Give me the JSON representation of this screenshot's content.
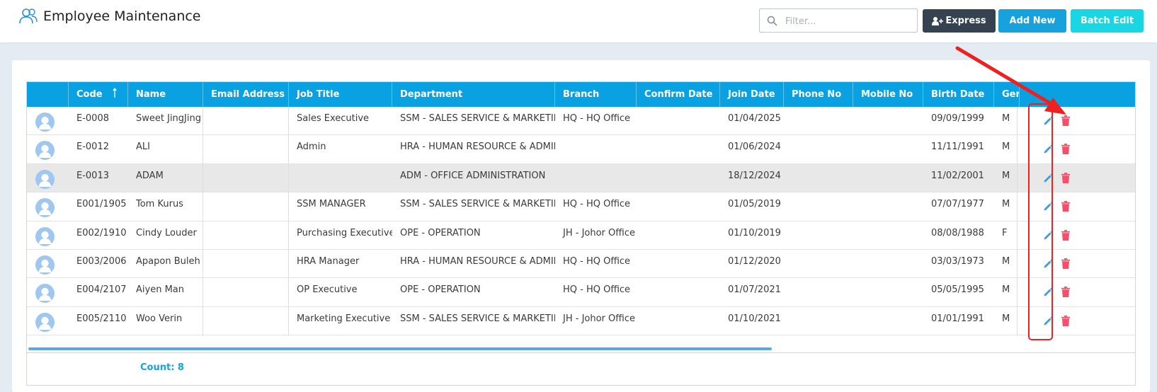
{
  "header": {
    "title": "Employee Maintenance",
    "filter_placeholder": "Filter...",
    "buttons": {
      "express": "Express",
      "add_new": "Add New",
      "batch_edit": "Batch Edit"
    }
  },
  "grid": {
    "columns": [
      "",
      "Code",
      "Name",
      "Email Address",
      "Job Title",
      "Department",
      "Branch",
      "Confirm Date",
      "Join Date",
      "Phone No",
      "Mobile No",
      "Birth Date",
      "Ger"
    ],
    "rows": [
      {
        "code": "E-0008",
        "name": "Sweet JingJing",
        "email": "",
        "job_title": "Sales Executive",
        "department": "SSM - SALES SERVICE & MARKETING",
        "branch": "HQ - HQ Office",
        "confirm_date": "",
        "join_date": "01/04/2025",
        "phone": "",
        "mobile": "",
        "birth_date": "09/09/1999",
        "gender": "M"
      },
      {
        "code": "E-0012",
        "name": "ALI",
        "email": "",
        "job_title": "Admin",
        "department": "HRA - HUMAN RESOURCE & ADMIN",
        "branch": "",
        "confirm_date": "",
        "join_date": "01/06/2024",
        "phone": "",
        "mobile": "",
        "birth_date": "11/11/1991",
        "gender": "M"
      },
      {
        "code": "E-0013",
        "name": "ADAM",
        "email": "",
        "job_title": "",
        "department": "ADM - OFFICE ADMINISTRATION",
        "branch": "",
        "confirm_date": "",
        "join_date": "18/12/2024",
        "phone": "",
        "mobile": "",
        "birth_date": "11/02/2001",
        "gender": "M"
      },
      {
        "code": "E001/1905",
        "name": "Tom Kurus",
        "email": "",
        "job_title": "SSM MANAGER",
        "department": "SSM - SALES SERVICE & MARKETING",
        "branch": "HQ - HQ Office",
        "confirm_date": "",
        "join_date": "01/05/2019",
        "phone": "",
        "mobile": "",
        "birth_date": "07/07/1977",
        "gender": "M"
      },
      {
        "code": "E002/1910",
        "name": "Cindy Louder",
        "email": "",
        "job_title": "Purchasing Executive",
        "department": "OPE - OPERATION",
        "branch": "JH - Johor Office",
        "confirm_date": "",
        "join_date": "01/10/2019",
        "phone": "",
        "mobile": "",
        "birth_date": "08/08/1988",
        "gender": "F"
      },
      {
        "code": "E003/2006",
        "name": "Apapon Buleh",
        "email": "",
        "job_title": "HRA Manager",
        "department": "HRA - HUMAN RESOURCE & ADMIN",
        "branch": "HQ - HQ Office",
        "confirm_date": "",
        "join_date": "01/12/2020",
        "phone": "",
        "mobile": "",
        "birth_date": "03/03/1973",
        "gender": "M"
      },
      {
        "code": "E004/2107",
        "name": "Aiyen Man",
        "email": "",
        "job_title": "OP Executive",
        "department": "OPE - OPERATION",
        "branch": "HQ - HQ Office",
        "confirm_date": "",
        "join_date": "01/07/2021",
        "phone": "",
        "mobile": "",
        "birth_date": "05/05/1995",
        "gender": "M"
      },
      {
        "code": "E005/2110",
        "name": "Woo Verin",
        "email": "",
        "job_title": "Marketing Executive",
        "department": "SSM - SALES SERVICE & MARKETING",
        "branch": "JH - Johor Office",
        "confirm_date": "",
        "join_date": "01/10/2021",
        "phone": "",
        "mobile": "",
        "birth_date": "01/01/1991",
        "gender": "M"
      }
    ],
    "selected_row_index": 2,
    "count_label": "Count: 8"
  },
  "icons": {
    "header": "users-icon",
    "filter": "search-icon",
    "express": "user-plus-icon",
    "sort": "sort-ascending-icon",
    "avatar": "avatar-icon",
    "edit": "pencil-icon",
    "delete": "trash-icon"
  },
  "colors": {
    "header_blue": "#0aa1e3",
    "express_dark": "#354350",
    "add_blue": "#17a2dd",
    "batch_cyan": "#19d6e2",
    "delete_red": "#f2506a",
    "annotation_red": "#ef2020"
  }
}
